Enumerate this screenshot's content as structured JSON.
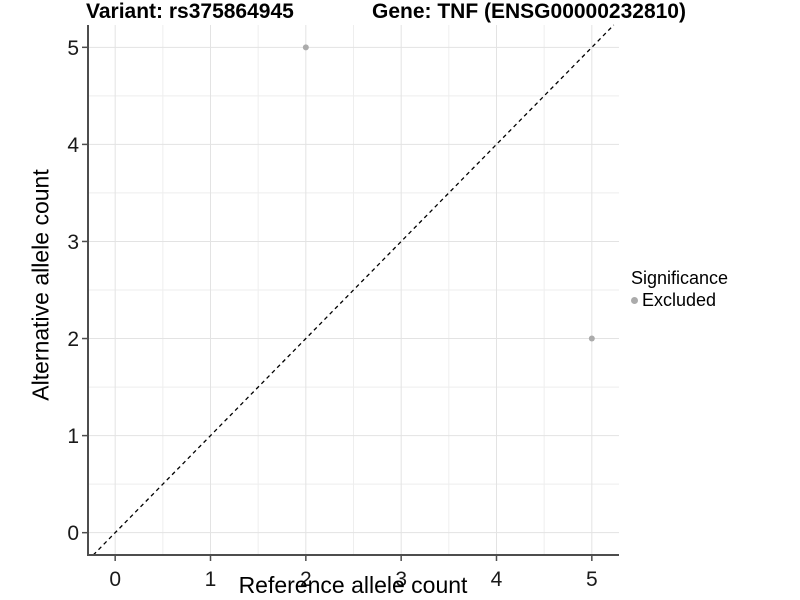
{
  "titles": {
    "variant": "Variant: rs375864945",
    "gene": "Gene: TNF (ENSG00000232810)"
  },
  "chart_data": {
    "type": "scatter",
    "title_left": "Variant: rs375864945",
    "title_right": "Gene: TNF (ENSG00000232810)",
    "xlabel": "Reference allele count",
    "ylabel": "Alternative allele count",
    "xlim": [
      -0.285,
      5.285
    ],
    "ylim": [
      -0.23,
      5.23
    ],
    "x_ticks": [
      0,
      1,
      2,
      3,
      4,
      5
    ],
    "y_ticks": [
      0,
      1,
      2,
      3,
      4,
      5
    ],
    "minor_grid_step": 0.5,
    "grid": true,
    "points": [
      {
        "x": 2,
        "y": 5,
        "series": "Excluded"
      },
      {
        "x": 5,
        "y": 2,
        "series": "Excluded"
      }
    ],
    "reference_line": {
      "type": "identity",
      "style": "dashed",
      "color": "#000000"
    },
    "legend": {
      "title": "Significance",
      "position": "right",
      "items": [
        {
          "label": "Excluded",
          "color": "#ababab"
        }
      ]
    }
  },
  "colors": {
    "background": "#ffffff",
    "grid_major": "#e3e3e3",
    "grid_minor": "#eeeeee",
    "axis_line": "#4d4d4d",
    "tick_mark": "#4d4d4d",
    "tick_text": "#1a1a1a",
    "point": "#b3b3b3",
    "ref_line": "#000000"
  }
}
